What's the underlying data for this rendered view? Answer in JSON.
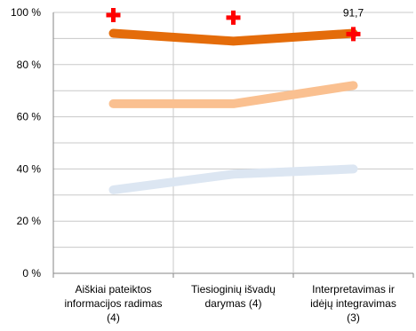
{
  "chart_data": {
    "type": "line",
    "categories": [
      [
        "Aiškiai pateiktos",
        "informacijos radimas",
        "(4)"
      ],
      [
        "Tiesioginių išvadų",
        "darymas (4)"
      ],
      [
        "Interpretavimas ir",
        "idėjų integravimas",
        "(3)"
      ]
    ],
    "y_tick_labels": [
      "0 %",
      "20 %",
      "40 %",
      "60 %",
      "80 %",
      "100 %"
    ],
    "ylim": [
      0,
      100
    ],
    "grid": true,
    "legend": "none",
    "series": [
      {
        "values": [
          92,
          89,
          92
        ],
        "color": "#E46C0A",
        "style": "line"
      },
      {
        "values": [
          65,
          65,
          72
        ],
        "color": "#FAC090",
        "style": "line"
      },
      {
        "values": [
          32,
          38,
          40
        ],
        "color": "#DCE6F2",
        "style": "line"
      },
      {
        "values": [
          99,
          98,
          91.7
        ],
        "color": "#FF0000",
        "style": "cross-marker",
        "data_labels": [
          "",
          "",
          "91,7"
        ]
      }
    ]
  }
}
